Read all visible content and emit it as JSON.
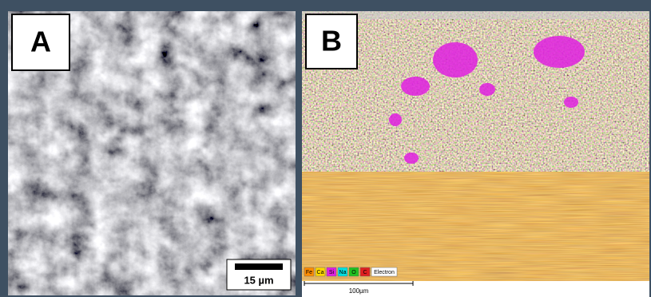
{
  "panels": [
    {
      "label": "A",
      "scale_bar": "15 µm"
    },
    {
      "label": "B",
      "scale_bar": "100µm",
      "legend": [
        {
          "name": "Fe",
          "color": "#ff8c00"
        },
        {
          "name": "Ca",
          "color": "#ffd700"
        },
        {
          "name": "Si",
          "color": "#e020e0"
        },
        {
          "name": "Na",
          "color": "#00e0e0"
        },
        {
          "name": "O",
          "color": "#20c020"
        },
        {
          "name": "C",
          "color": "#e02020"
        },
        {
          "name": "Electron",
          "color": "#ffffff"
        }
      ]
    }
  ]
}
